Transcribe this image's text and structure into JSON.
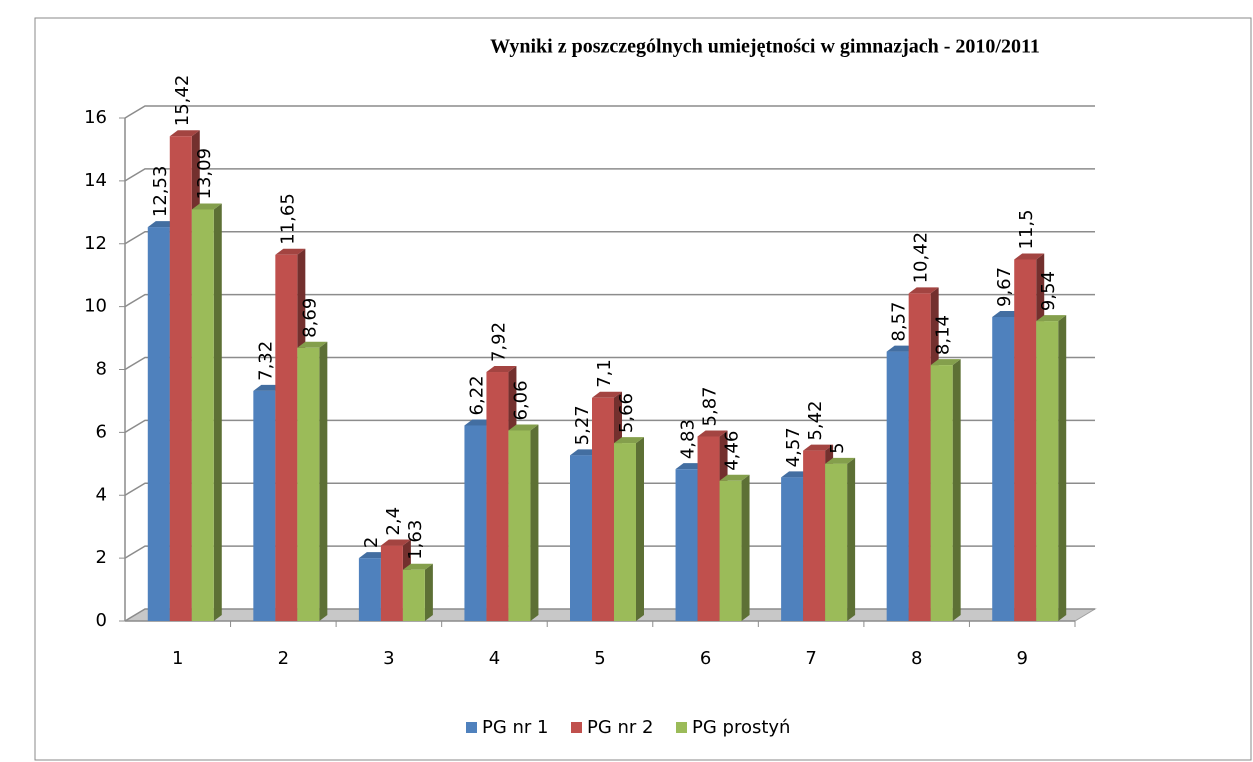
{
  "chart_data": {
    "type": "bar",
    "title": "Wyniki  z poszczególnych umiejętności w gimnazjach - 2010/2011",
    "categories": [
      "1",
      "2",
      "3",
      "4",
      "5",
      "6",
      "7",
      "8",
      "9"
    ],
    "series": [
      {
        "name": "PG nr 1",
        "color": "#4f81bd",
        "values": [
          12.53,
          7.32,
          2,
          6.22,
          5.27,
          4.83,
          4.57,
          8.57,
          9.67
        ],
        "value_labels": [
          "12,53",
          "7,32",
          "2",
          "6,22",
          "5,27",
          "4,83",
          "4,57",
          "8,57",
          "9,67"
        ]
      },
      {
        "name": "PG nr 2",
        "color": "#c0504d",
        "values": [
          15.42,
          11.65,
          2.4,
          7.92,
          7.1,
          5.87,
          5.42,
          10.42,
          11.5
        ],
        "value_labels": [
          "15,42",
          "11,65",
          "2,4",
          "7,92",
          "7,1",
          "5,87",
          "5,42",
          "10,42",
          "11,5"
        ]
      },
      {
        "name": "PG prostyń",
        "color": "#9bbb59",
        "values": [
          13.09,
          8.69,
          1.63,
          6.06,
          5.66,
          4.46,
          5,
          8.14,
          9.54
        ],
        "value_labels": [
          "13,09",
          "8,69",
          "1,63",
          "6,06",
          "5,66",
          "4,46",
          "5",
          "8,14",
          "9,54"
        ]
      }
    ],
    "ylim": [
      0,
      16
    ],
    "yticks": [
      0,
      2,
      4,
      6,
      8,
      10,
      12,
      14,
      16
    ],
    "grid": true,
    "legend": "bottom"
  }
}
